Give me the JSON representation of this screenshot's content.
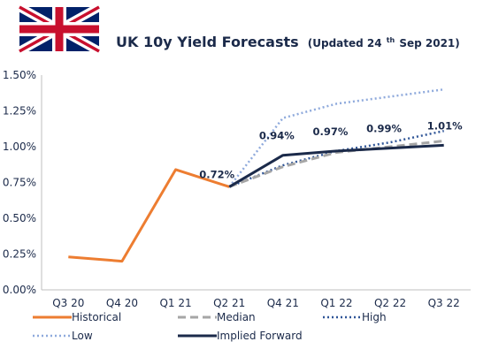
{
  "chart_data": {
    "type": "line",
    "title": "UK 10y Yield Forecasts",
    "subtitle_prefix": "(Updated 24",
    "subtitle_sup": "th",
    "subtitle_suffix": " Sep 2021)",
    "categories": [
      "Q3 20",
      "Q4 20",
      "Q1 21",
      "Q2 21",
      "Q4 21",
      "Q1 22",
      "Q2 22",
      "Q3 22"
    ],
    "yticks": [
      "0.00%",
      "0.25%",
      "0.50%",
      "0.75%",
      "1.00%",
      "1.25%",
      "1.50%"
    ],
    "ylim": [
      0,
      1.5
    ],
    "grid": false,
    "legend": "bottom",
    "series": [
      {
        "name": "Historical",
        "color": "#ed7d31",
        "style": "solid",
        "values": [
          0.23,
          0.2,
          0.84,
          0.72,
          null,
          null,
          null,
          null
        ]
      },
      {
        "name": "Median",
        "color": "#a6a6a6",
        "style": "dashed",
        "values": [
          null,
          null,
          null,
          0.72,
          0.86,
          0.96,
          1.0,
          1.04
        ]
      },
      {
        "name": "High",
        "color": "#2f5597",
        "style": "dotted",
        "values": [
          null,
          null,
          null,
          0.72,
          0.87,
          0.97,
          1.03,
          1.11
        ]
      },
      {
        "name": "Low",
        "color": "#8faadc",
        "style": "dotted",
        "values": [
          null,
          null,
          null,
          0.72,
          1.2,
          1.3,
          1.35,
          1.4
        ]
      },
      {
        "name": "Implied Forward",
        "color": "#1b2a4a",
        "style": "solid",
        "values": [
          null,
          null,
          null,
          0.72,
          0.94,
          0.97,
          0.99,
          1.01
        ]
      }
    ],
    "data_labels": [
      {
        "category_index": 3,
        "value": 0.72,
        "text": "0.72%"
      },
      {
        "category_index": 4,
        "value": 0.94,
        "text": "0.94%"
      },
      {
        "category_index": 5,
        "value": 0.97,
        "text": "0.97%"
      },
      {
        "category_index": 6,
        "value": 0.99,
        "text": "0.99%"
      },
      {
        "category_index": 7,
        "value": 1.01,
        "text": "1.01%"
      }
    ]
  }
}
